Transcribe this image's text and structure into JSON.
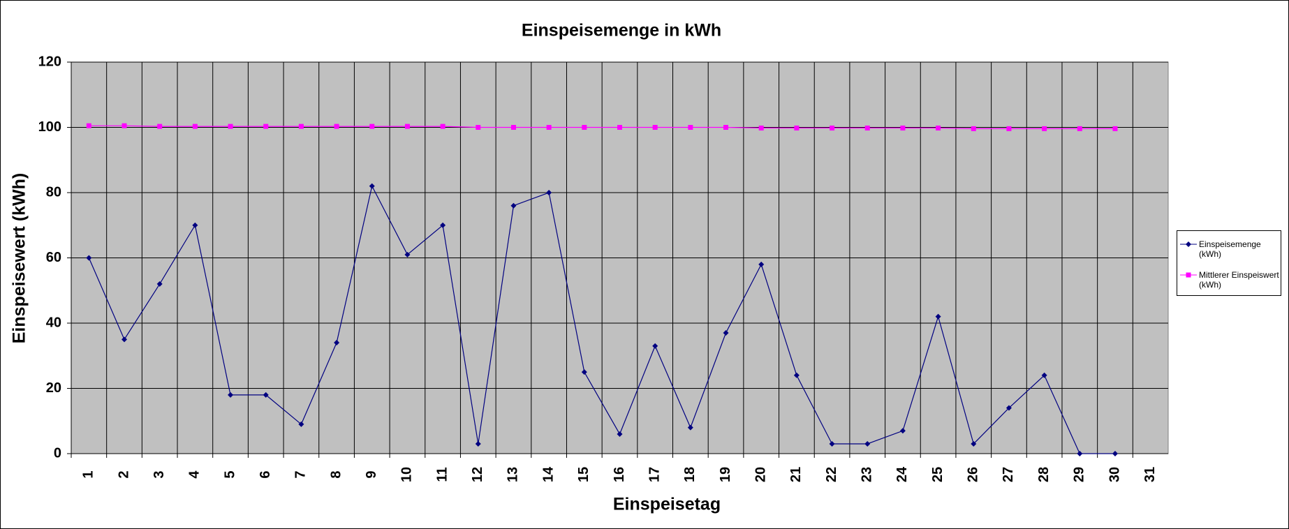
{
  "chart_data": {
    "type": "line",
    "title": "Einspeisemenge in kWh",
    "xlabel": "Einspeisetag",
    "ylabel": "Einspeisewert  (kWh)",
    "categories": [
      "1",
      "2",
      "3",
      "4",
      "5",
      "6",
      "7",
      "8",
      "9",
      "10",
      "11",
      "12",
      "13",
      "14",
      "15",
      "16",
      "17",
      "18",
      "19",
      "20",
      "21",
      "22",
      "23",
      "24",
      "25",
      "26",
      "27",
      "28",
      "29",
      "30",
      "31"
    ],
    "series": [
      {
        "name": "Einspeisemenge (kWh)",
        "color": "#000080",
        "marker": "diamond",
        "values": [
          60,
          35,
          52,
          70,
          18,
          18,
          9,
          34,
          82,
          61,
          70,
          3,
          76,
          80,
          25,
          6,
          33,
          8,
          37,
          58,
          24,
          3,
          3,
          7,
          42,
          3,
          14,
          24,
          0,
          0,
          null
        ]
      },
      {
        "name": "Mittlerer Einspeiswert (kWh)",
        "color": "#ff00ff",
        "marker": "square",
        "values": [
          100.5,
          100.5,
          100.3,
          100.3,
          100.3,
          100.3,
          100.3,
          100.3,
          100.3,
          100.3,
          100.3,
          100,
          100,
          100,
          100,
          100,
          100,
          100,
          100,
          99.8,
          99.8,
          99.8,
          99.8,
          99.8,
          99.8,
          99.6,
          99.6,
          99.6,
          99.6,
          99.6,
          null
        ]
      }
    ],
    "ylim": [
      0,
      120
    ],
    "yticks": [
      0,
      20,
      40,
      60,
      80,
      100,
      120
    ],
    "grid": true,
    "plot_background": "#c0c0c0",
    "legend": "right"
  }
}
